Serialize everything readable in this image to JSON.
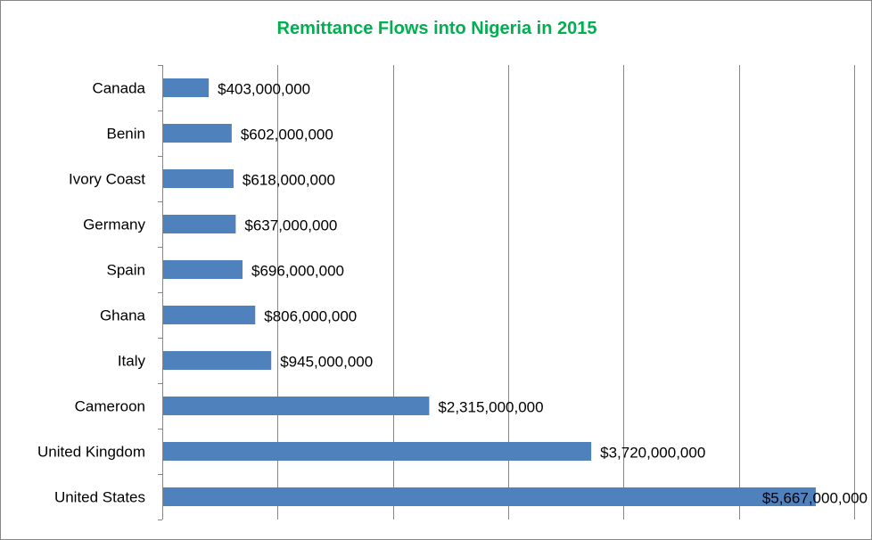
{
  "chart_data": {
    "type": "bar",
    "orientation": "horizontal",
    "title": "Remittance Flows into Nigeria in 2015",
    "categories": [
      "Canada",
      "Benin",
      "Ivory Coast",
      "Germany",
      "Spain",
      "Ghana",
      "Italy",
      "Cameroon",
      "United Kingdom",
      "United States"
    ],
    "values": [
      403000000,
      602000000,
      618000000,
      637000000,
      696000000,
      806000000,
      945000000,
      2315000000,
      3720000000,
      5667000000
    ],
    "data_labels": [
      "$403,000,000",
      "$602,000,000",
      "$618,000,000",
      "$637,000,000",
      "$696,000,000",
      "$806,000,000",
      "$945,000,000",
      "$2,315,000,000",
      "$3,720,000,000",
      "$5,667,000,000"
    ],
    "xlim": [
      0,
      6000000000
    ],
    "x_gridline_step": 1000000000,
    "grid": "vertical",
    "x_tick_labels_shown": false,
    "legend": "none",
    "colors": {
      "bar": "#4f81bd",
      "title": "#00b050",
      "grid": "#868686",
      "text": "#000000"
    }
  }
}
